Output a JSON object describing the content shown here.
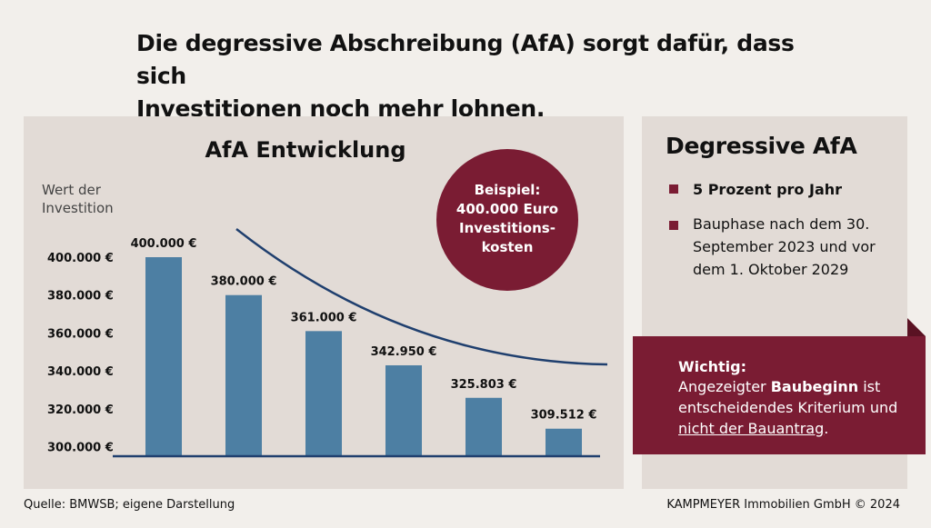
{
  "headline": {
    "line1": "Die degressive Abschreibung (AfA) sorgt dafür, dass sich",
    "line2": "Investitionen noch mehr lohnen."
  },
  "chart_data": {
    "type": "bar",
    "title": "AfA Entwicklung",
    "ylabel_line1": "Wert der",
    "ylabel_line2": "Investition",
    "categories": [
      "",
      "",
      "",
      "",
      "",
      ""
    ],
    "values": [
      400000,
      380000,
      361000,
      342950,
      325803,
      309512
    ],
    "value_labels": [
      "400.000 €",
      "380.000 €",
      "361.000 €",
      "342.950 €",
      "325.803 €",
      "309.512 €"
    ],
    "yticks": [
      300000,
      320000,
      340000,
      360000,
      380000,
      400000
    ],
    "ytick_labels": [
      "300.000 €",
      "320.000 €",
      "340.000 €",
      "360.000 €",
      "380.000 €",
      "400.000 €"
    ],
    "ylim": [
      295000,
      400000
    ],
    "grid": false,
    "trend_line": "decreasing curve",
    "colors": {
      "bar": "#4d7fa3",
      "trend": "#1f3f6e",
      "axis": "#1f3f6e"
    }
  },
  "example_badge": {
    "lines": [
      "Beispiel:",
      "400.000 Euro",
      "Investitions-",
      "kosten"
    ],
    "color": "#7a1c33"
  },
  "info": {
    "title": "Degressive AfA",
    "bullet1": "5 Prozent pro Jahr",
    "bullet2": "Bauphase nach dem 30. September 2023 und vor dem 1. Oktober 2029",
    "bullet_color": "#7a1c33"
  },
  "callout": {
    "heading": "Wichtig:",
    "text_a": "Angezeigter ",
    "text_b": "Baubeginn",
    "text_c": " ist entscheidendes Kriterium und ",
    "text_d": "nicht der Bauantrag",
    "text_e": ".",
    "color": "#7a1c33"
  },
  "footer": {
    "source": "Quelle: BMWSB; eigene Darstellung",
    "copyright": "KAMPMEYER Immobilien GmbH © 2024"
  }
}
